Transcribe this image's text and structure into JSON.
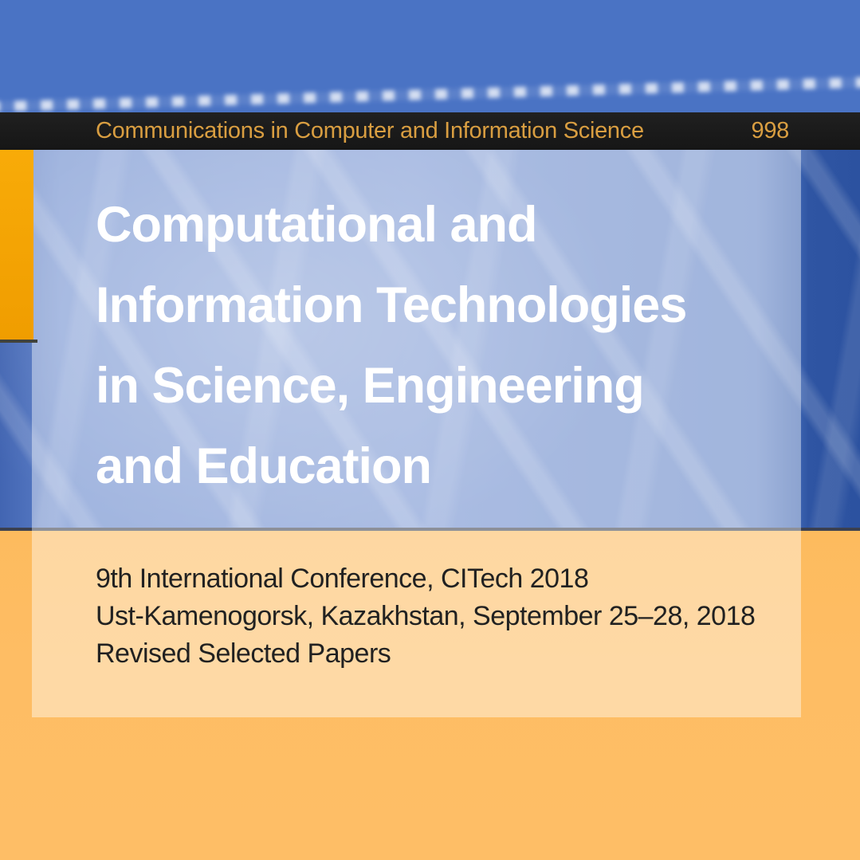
{
  "cover": {
    "series_bar": {
      "title": "Communications in Computer and Information Science",
      "volume": "998"
    },
    "title_lines": [
      "Computational and",
      "Information Technologies",
      "in Science, Engineering",
      "and Education"
    ],
    "subtitle_lines": [
      "9th International Conference, CITech 2018",
      "Ust-Kamenogorsk, Kazakhstan, September 25–28, 2018",
      "Revised Selected Papers"
    ],
    "colors": {
      "series_bar_bg": "#1A1A1A",
      "series_text": "#D99E41",
      "title_text": "#FFFFFF",
      "subtitle_text": "#212121",
      "accent_square": "#F5A50C",
      "blue_background": "#5C7FC8",
      "blue_background_right": "#2F55A3",
      "orange_background": "#FEBD63",
      "divider_line": "#3B4050",
      "panel_overlay": "rgba(255,255,255,0.42)"
    }
  }
}
